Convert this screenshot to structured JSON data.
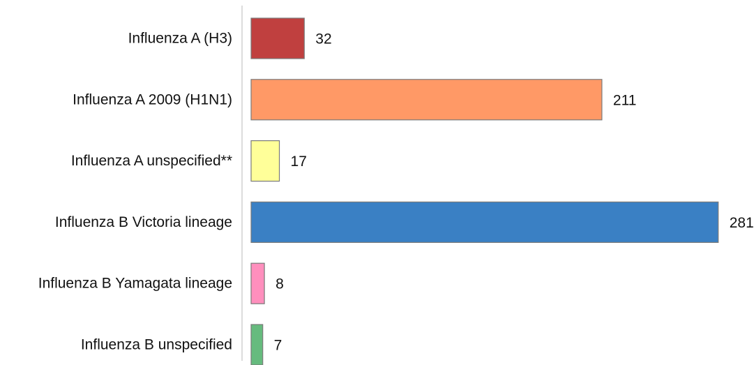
{
  "chart_data": {
    "type": "bar",
    "orientation": "horizontal",
    "categories": [
      "Influenza A (H3)",
      "Influenza A 2009 (H1N1)",
      "Influenza A unspecified**",
      "Influenza B Victoria lineage",
      "Influenza B Yamagata lineage",
      "Influenza B unspecified"
    ],
    "values": [
      32,
      211,
      17,
      281,
      8,
      7
    ],
    "colors": [
      "#c0403f",
      "#ff9966",
      "#ffff99",
      "#3a80c4",
      "#ff8fbd",
      "#66bb7e"
    ],
    "title": "",
    "xlabel": "",
    "ylabel": "",
    "grid": false,
    "legend": false,
    "data_labels": true
  }
}
